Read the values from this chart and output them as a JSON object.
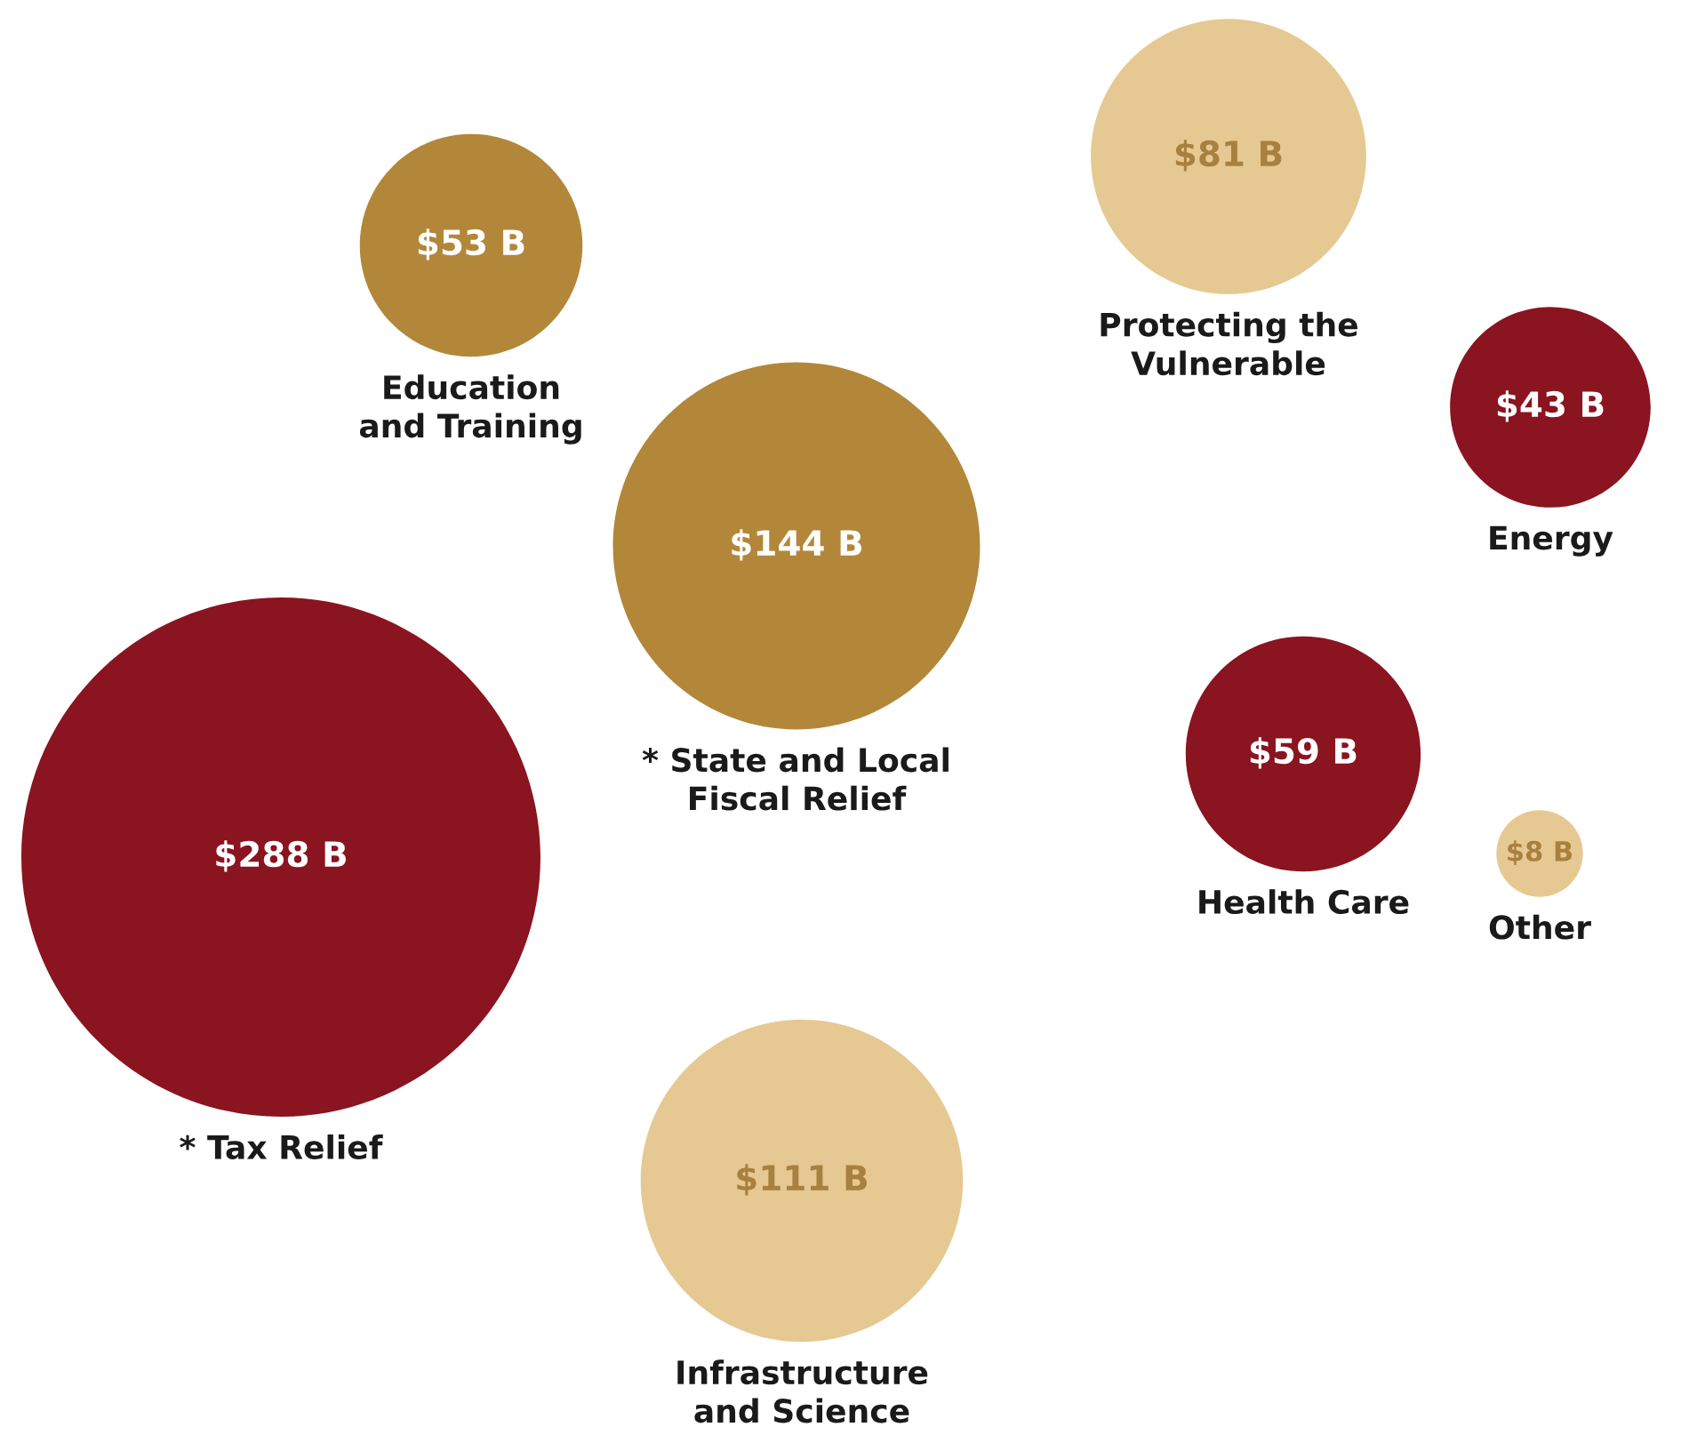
{
  "chart_data": {
    "type": "other",
    "categories": [
      "Protecting the\nVulnerable",
      "Education\nand Training",
      "Energy",
      "* State and Local\nFiscal Relief",
      "* Tax Relief",
      "Health Care",
      "Other",
      "Infrastructure\nand Science"
    ],
    "values": [
      81,
      53,
      43,
      144,
      288,
      59,
      8,
      111
    ],
    "value_labels": [
      "$81 B",
      "$53 B",
      "$43 B",
      "$144 B",
      "$288 B",
      "$59 B",
      "$8 B",
      "$111 B"
    ],
    "colors": [
      "#e6c992",
      "#b3873a",
      "#8a1420",
      "#b3873a",
      "#8a1420",
      "#8a1420",
      "#e6c992",
      "#e6c992"
    ],
    "data_labels": true
  }
}
